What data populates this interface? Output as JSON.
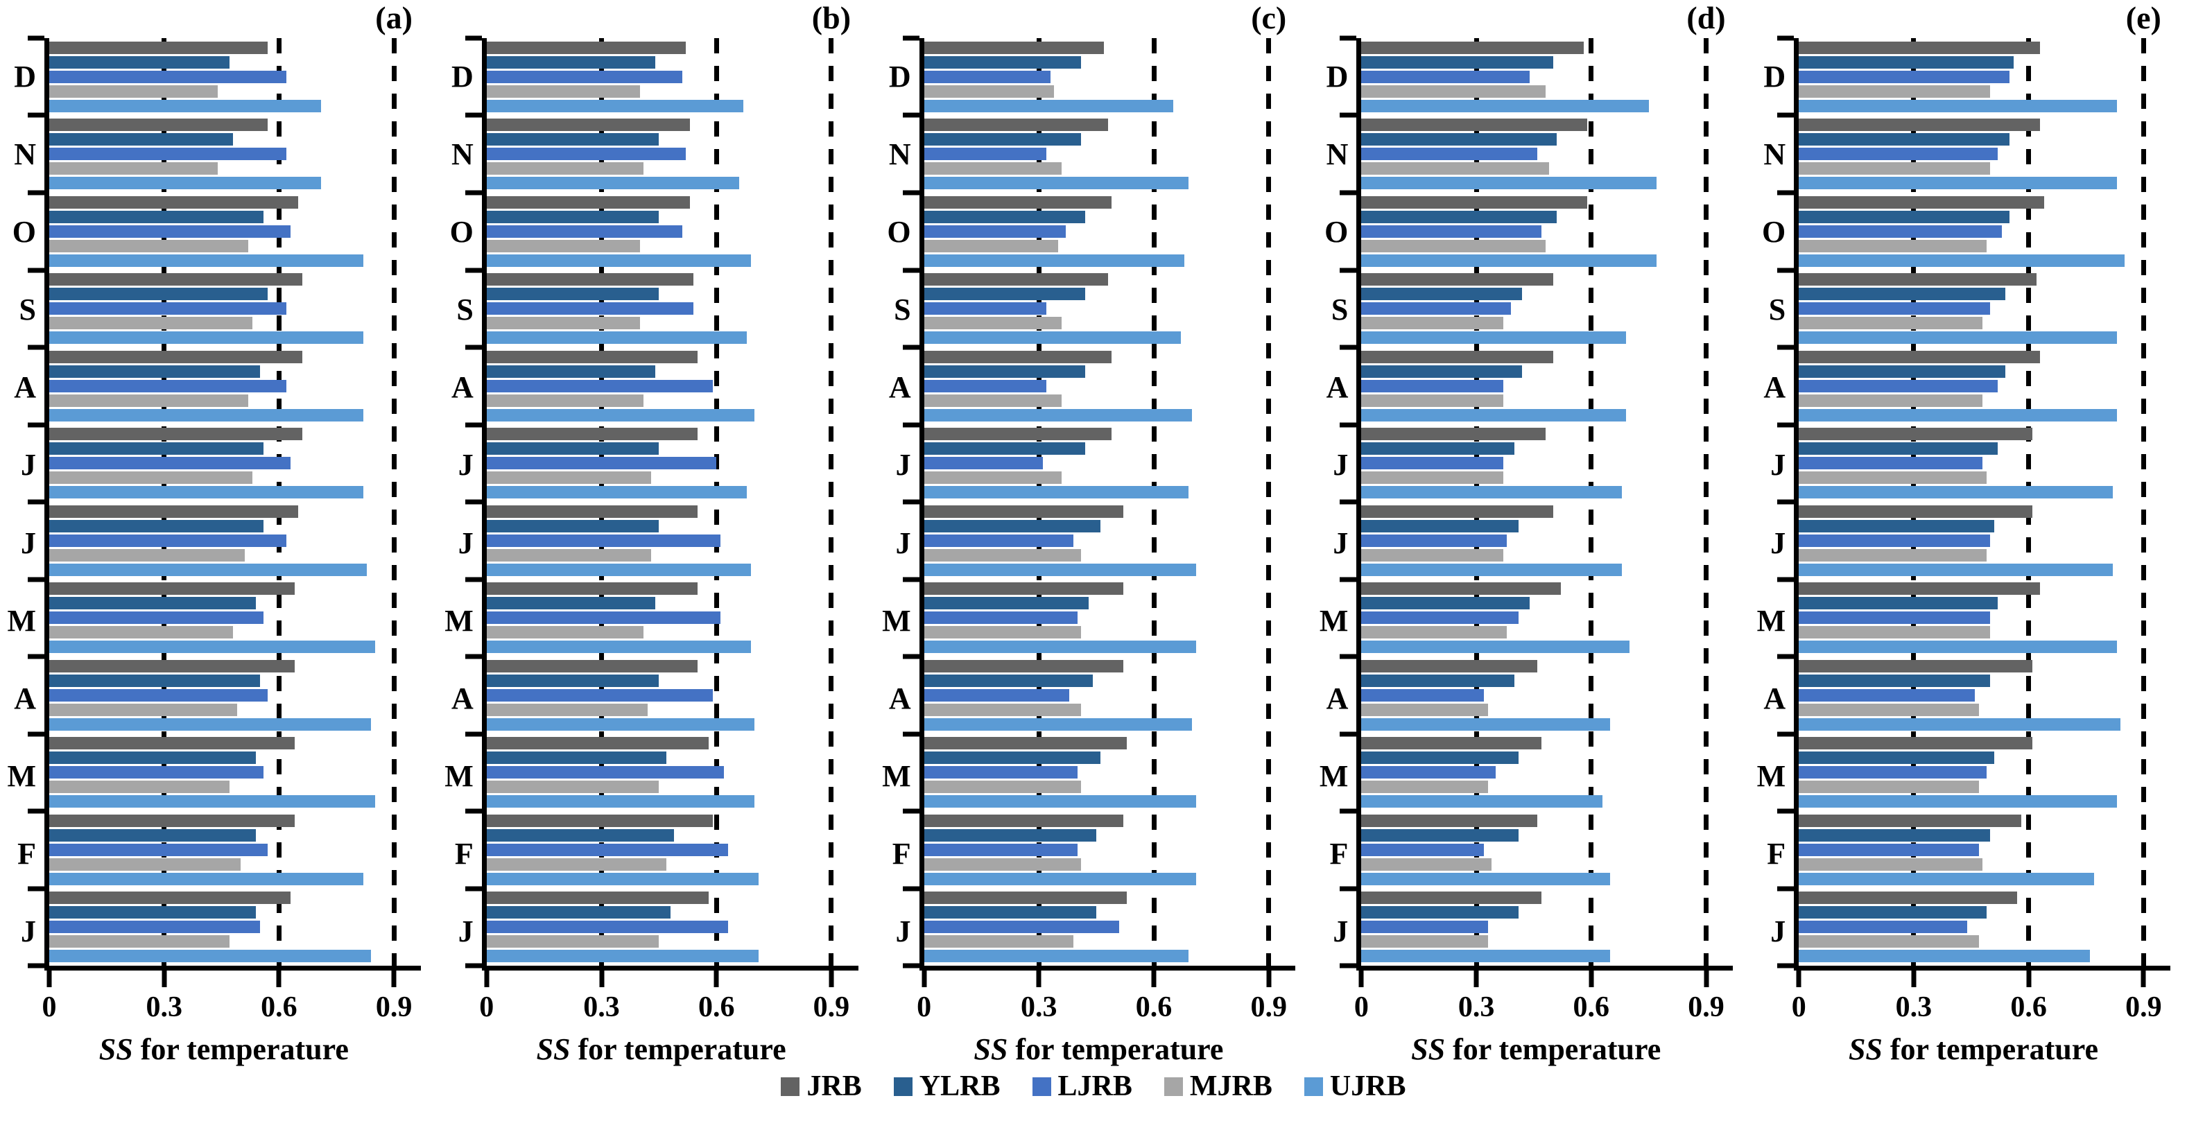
{
  "figure": {
    "xlabel_italic": "SS",
    "xlabel_rest": " for temperature"
  },
  "legend": {
    "items": [
      {
        "name": "JRB",
        "color": "#636363"
      },
      {
        "name": "YLRB",
        "color": "#295F8F"
      },
      {
        "name": "LJRB",
        "color": "#4472C4"
      },
      {
        "name": "MJRB",
        "color": "#A6A6A6"
      },
      {
        "name": "UJRB",
        "color": "#5B9BD5"
      }
    ]
  },
  "chart_data": {
    "type": "bar",
    "orientation": "horizontal",
    "xlabel": "SS for temperature",
    "xlim": [
      0,
      0.9
    ],
    "x_domain_max": 0.97,
    "x_ticks": [
      "0",
      "0.3",
      "0.6",
      "0.9"
    ],
    "x_tick_values": [
      0,
      0.3,
      0.6,
      0.9
    ],
    "gridline_values": [
      0.3,
      0.6,
      0.9
    ],
    "grid_style": "dashed",
    "categories_top_to_bottom": [
      "D",
      "N",
      "O",
      "S",
      "A",
      "J",
      "J",
      "M",
      "A",
      "M",
      "F",
      "J"
    ],
    "series_names": [
      "JRB",
      "YLRB",
      "LJRB",
      "MJRB",
      "UJRB"
    ],
    "series_colors": [
      "#636363",
      "#295F8F",
      "#4472C4",
      "#A6A6A6",
      "#5B9BD5"
    ],
    "legend_position": "bottom-center",
    "panels": [
      {
        "label": "(a)",
        "rows": [
          {
            "month": "D",
            "values": [
              0.57,
              0.47,
              0.62,
              0.44,
              0.71
            ]
          },
          {
            "month": "N",
            "values": [
              0.57,
              0.48,
              0.62,
              0.44,
              0.71
            ]
          },
          {
            "month": "O",
            "values": [
              0.65,
              0.56,
              0.63,
              0.52,
              0.82
            ]
          },
          {
            "month": "S",
            "values": [
              0.66,
              0.57,
              0.62,
              0.53,
              0.82
            ]
          },
          {
            "month": "A",
            "values": [
              0.66,
              0.55,
              0.62,
              0.52,
              0.82
            ]
          },
          {
            "month": "J",
            "values": [
              0.66,
              0.56,
              0.63,
              0.53,
              0.82
            ]
          },
          {
            "month": "J",
            "values": [
              0.65,
              0.56,
              0.62,
              0.51,
              0.83
            ]
          },
          {
            "month": "M",
            "values": [
              0.64,
              0.54,
              0.56,
              0.48,
              0.85
            ]
          },
          {
            "month": "A",
            "values": [
              0.64,
              0.55,
              0.57,
              0.49,
              0.84
            ]
          },
          {
            "month": "M",
            "values": [
              0.64,
              0.54,
              0.56,
              0.47,
              0.85
            ]
          },
          {
            "month": "F",
            "values": [
              0.64,
              0.54,
              0.57,
              0.5,
              0.82
            ]
          },
          {
            "month": "J",
            "values": [
              0.63,
              0.54,
              0.55,
              0.47,
              0.84
            ]
          }
        ]
      },
      {
        "label": "(b)",
        "rows": [
          {
            "month": "D",
            "values": [
              0.52,
              0.44,
              0.51,
              0.4,
              0.67
            ]
          },
          {
            "month": "N",
            "values": [
              0.53,
              0.45,
              0.52,
              0.41,
              0.66
            ]
          },
          {
            "month": "O",
            "values": [
              0.53,
              0.45,
              0.51,
              0.4,
              0.69
            ]
          },
          {
            "month": "S",
            "values": [
              0.54,
              0.45,
              0.54,
              0.4,
              0.68
            ]
          },
          {
            "month": "A",
            "values": [
              0.55,
              0.44,
              0.59,
              0.41,
              0.7
            ]
          },
          {
            "month": "J",
            "values": [
              0.55,
              0.45,
              0.6,
              0.43,
              0.68
            ]
          },
          {
            "month": "J",
            "values": [
              0.55,
              0.45,
              0.61,
              0.43,
              0.69
            ]
          },
          {
            "month": "M",
            "values": [
              0.55,
              0.44,
              0.61,
              0.41,
              0.69
            ]
          },
          {
            "month": "A",
            "values": [
              0.55,
              0.45,
              0.59,
              0.42,
              0.7
            ]
          },
          {
            "month": "M",
            "values": [
              0.58,
              0.47,
              0.62,
              0.45,
              0.7
            ]
          },
          {
            "month": "F",
            "values": [
              0.59,
              0.49,
              0.63,
              0.47,
              0.71
            ]
          },
          {
            "month": "J",
            "values": [
              0.58,
              0.48,
              0.63,
              0.45,
              0.71
            ]
          }
        ]
      },
      {
        "label": "(c)",
        "rows": [
          {
            "month": "D",
            "values": [
              0.47,
              0.41,
              0.33,
              0.34,
              0.65
            ]
          },
          {
            "month": "N",
            "values": [
              0.48,
              0.41,
              0.32,
              0.36,
              0.69
            ]
          },
          {
            "month": "O",
            "values": [
              0.49,
              0.42,
              0.37,
              0.35,
              0.68
            ]
          },
          {
            "month": "S",
            "values": [
              0.48,
              0.42,
              0.32,
              0.36,
              0.67
            ]
          },
          {
            "month": "A",
            "values": [
              0.49,
              0.42,
              0.32,
              0.36,
              0.7
            ]
          },
          {
            "month": "J",
            "values": [
              0.49,
              0.42,
              0.31,
              0.36,
              0.69
            ]
          },
          {
            "month": "J",
            "values": [
              0.52,
              0.46,
              0.39,
              0.41,
              0.71
            ]
          },
          {
            "month": "M",
            "values": [
              0.52,
              0.43,
              0.4,
              0.41,
              0.71
            ]
          },
          {
            "month": "A",
            "values": [
              0.52,
              0.44,
              0.38,
              0.41,
              0.7
            ]
          },
          {
            "month": "M",
            "values": [
              0.53,
              0.46,
              0.4,
              0.41,
              0.71
            ]
          },
          {
            "month": "F",
            "values": [
              0.52,
              0.45,
              0.4,
              0.41,
              0.71
            ]
          },
          {
            "month": "J",
            "values": [
              0.53,
              0.45,
              0.51,
              0.39,
              0.69
            ]
          }
        ]
      },
      {
        "label": "(d)",
        "rows": [
          {
            "month": "D",
            "values": [
              0.58,
              0.5,
              0.44,
              0.48,
              0.75
            ]
          },
          {
            "month": "N",
            "values": [
              0.59,
              0.51,
              0.46,
              0.49,
              0.77
            ]
          },
          {
            "month": "O",
            "values": [
              0.59,
              0.51,
              0.47,
              0.48,
              0.77
            ]
          },
          {
            "month": "S",
            "values": [
              0.5,
              0.42,
              0.39,
              0.37,
              0.69
            ]
          },
          {
            "month": "A",
            "values": [
              0.5,
              0.42,
              0.37,
              0.37,
              0.69
            ]
          },
          {
            "month": "J",
            "values": [
              0.48,
              0.4,
              0.37,
              0.37,
              0.68
            ]
          },
          {
            "month": "J",
            "values": [
              0.5,
              0.41,
              0.38,
              0.37,
              0.68
            ]
          },
          {
            "month": "M",
            "values": [
              0.52,
              0.44,
              0.41,
              0.38,
              0.7
            ]
          },
          {
            "month": "A",
            "values": [
              0.46,
              0.4,
              0.32,
              0.33,
              0.65
            ]
          },
          {
            "month": "M",
            "values": [
              0.47,
              0.41,
              0.35,
              0.33,
              0.63
            ]
          },
          {
            "month": "F",
            "values": [
              0.46,
              0.41,
              0.32,
              0.34,
              0.65
            ]
          },
          {
            "month": "J",
            "values": [
              0.47,
              0.41,
              0.33,
              0.33,
              0.65
            ]
          }
        ]
      },
      {
        "label": "(e)",
        "rows": [
          {
            "month": "D",
            "values": [
              0.63,
              0.56,
              0.55,
              0.5,
              0.83
            ]
          },
          {
            "month": "N",
            "values": [
              0.63,
              0.55,
              0.52,
              0.5,
              0.83
            ]
          },
          {
            "month": "O",
            "values": [
              0.64,
              0.55,
              0.53,
              0.49,
              0.85
            ]
          },
          {
            "month": "S",
            "values": [
              0.62,
              0.54,
              0.5,
              0.48,
              0.83
            ]
          },
          {
            "month": "A",
            "values": [
              0.63,
              0.54,
              0.52,
              0.48,
              0.83
            ]
          },
          {
            "month": "J",
            "values": [
              0.61,
              0.52,
              0.48,
              0.49,
              0.82
            ]
          },
          {
            "month": "J",
            "values": [
              0.61,
              0.51,
              0.5,
              0.49,
              0.82
            ]
          },
          {
            "month": "M",
            "values": [
              0.63,
              0.52,
              0.5,
              0.5,
              0.83
            ]
          },
          {
            "month": "A",
            "values": [
              0.61,
              0.5,
              0.46,
              0.47,
              0.84
            ]
          },
          {
            "month": "M",
            "values": [
              0.61,
              0.51,
              0.49,
              0.47,
              0.83
            ]
          },
          {
            "month": "F",
            "values": [
              0.58,
              0.5,
              0.47,
              0.48,
              0.77
            ]
          },
          {
            "month": "J",
            "values": [
              0.57,
              0.49,
              0.44,
              0.47,
              0.76
            ]
          }
        ]
      }
    ]
  }
}
